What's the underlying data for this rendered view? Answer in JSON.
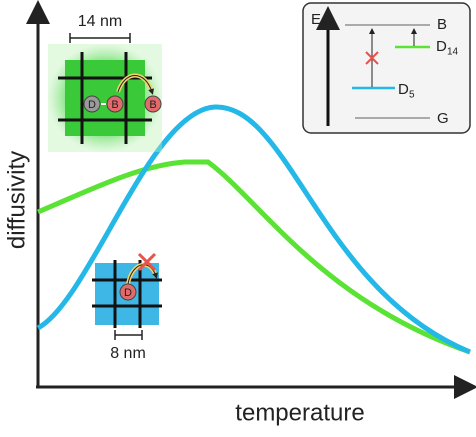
{
  "axes": {
    "y_label": "diffusivity",
    "x_label": "temperature"
  },
  "green_inset": {
    "scale": "14 nm",
    "atoms": [
      "D",
      "B",
      "B"
    ]
  },
  "blue_inset": {
    "scale": "8 nm",
    "atoms": [
      "D"
    ]
  },
  "energy_diagram": {
    "axis": "E",
    "levels": [
      {
        "label": "B"
      },
      {
        "label": "D",
        "subscript": "14"
      },
      {
        "label": "D",
        "subscript": "5"
      },
      {
        "label": "G"
      }
    ]
  }
}
